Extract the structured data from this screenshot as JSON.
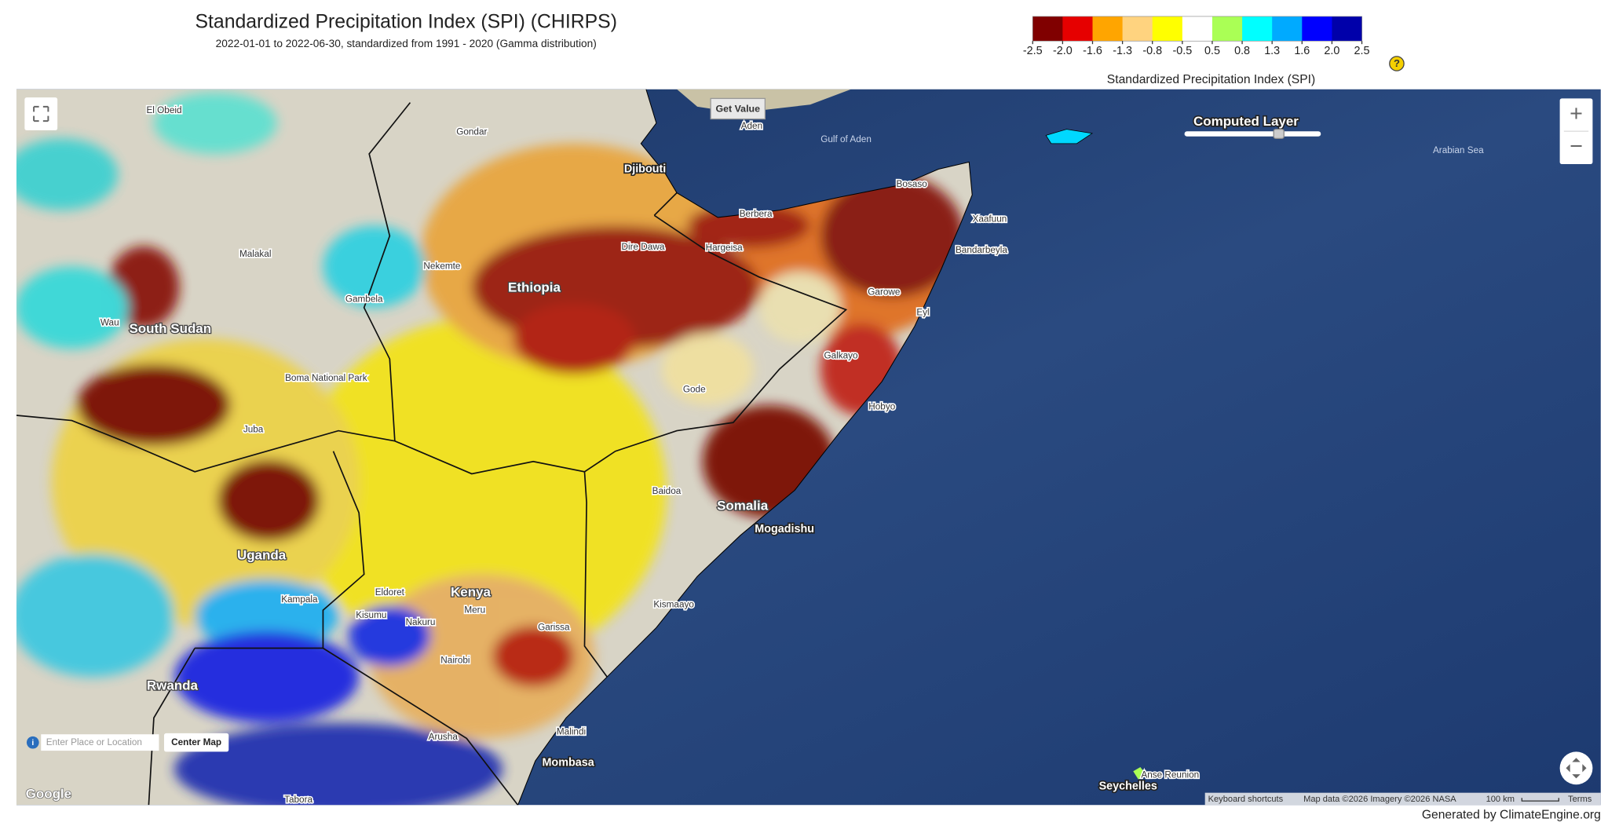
{
  "header": {
    "title": "Standardized Precipitation Index (SPI) (CHIRPS)",
    "subtitle": "2022-01-01 to 2022-06-30, standardized from 1991 - 2020 (Gamma distribution)"
  },
  "legend": {
    "title": "Standardized Precipitation Index (SPI)",
    "colors": [
      "#800000",
      "#e60000",
      "#ffa500",
      "#ffd37f",
      "#ffff00",
      "#ffffff",
      "#aaff55",
      "#00ffff",
      "#00aaff",
      "#0000ff",
      "#0000aa"
    ],
    "tick_labels": [
      "-2.5",
      "-2.0",
      "-1.6",
      "-1.3",
      "-0.8",
      "-0.5",
      "0.5",
      "0.8",
      "1.3",
      "1.6",
      "2.0",
      "2.5"
    ],
    "help": "?"
  },
  "map": {
    "controls": {
      "get_value": "Get Value",
      "layer_label": "Computed Layer",
      "search_placeholder": "Enter Place or Location",
      "center_map": "Center Map",
      "zoom_in": "+",
      "zoom_out": "−",
      "info": "i"
    },
    "labels": [
      {
        "text": "South Sudan",
        "kind": "country"
      },
      {
        "text": "Ethiopia",
        "kind": "country"
      },
      {
        "text": "Somalia",
        "kind": "country"
      },
      {
        "text": "Kenya",
        "kind": "country"
      },
      {
        "text": "Uganda",
        "kind": "country"
      },
      {
        "text": "Rwanda",
        "kind": "country"
      },
      {
        "text": "Djibouti",
        "kind": "big"
      },
      {
        "text": "Mogadishu",
        "kind": "big"
      },
      {
        "text": "Mombasa",
        "kind": "big"
      },
      {
        "text": "Seychelles",
        "kind": "big"
      },
      {
        "text": "Kampala",
        "kind": "city"
      },
      {
        "text": "Nairobi",
        "kind": "city"
      },
      {
        "text": "Juba",
        "kind": "city"
      },
      {
        "text": "Gulf of Aden",
        "kind": "water"
      },
      {
        "text": "Arabian Sea",
        "kind": "water"
      },
      {
        "text": "Bandarbeyla",
        "kind": "city"
      },
      {
        "text": "Hobyo",
        "kind": "city"
      },
      {
        "text": "Hargeisa",
        "kind": "city"
      },
      {
        "text": "Dire Dawa",
        "kind": "city"
      },
      {
        "text": "Gode",
        "kind": "city"
      },
      {
        "text": "Garowe",
        "kind": "city"
      },
      {
        "text": "Bosaso",
        "kind": "city"
      },
      {
        "text": "Aden",
        "kind": "city"
      },
      {
        "text": "Berbera",
        "kind": "city"
      },
      {
        "text": "Galkayo",
        "kind": "city"
      },
      {
        "text": "Baidoa",
        "kind": "city"
      },
      {
        "text": "Kismaayo",
        "kind": "city"
      },
      {
        "text": "Malindi",
        "kind": "city"
      },
      {
        "text": "Eldoret",
        "kind": "city"
      },
      {
        "text": "Kisumu",
        "kind": "city"
      },
      {
        "text": "Nakuru",
        "kind": "city"
      },
      {
        "text": "Meru",
        "kind": "city"
      },
      {
        "text": "Garissa",
        "kind": "city"
      },
      {
        "text": "Arusha",
        "kind": "city"
      },
      {
        "text": "Nekemte",
        "kind": "city"
      },
      {
        "text": "Gambela",
        "kind": "city"
      },
      {
        "text": "Malakal",
        "kind": "city"
      },
      {
        "text": "Wau",
        "kind": "city"
      },
      {
        "text": "El Obeid",
        "kind": "city"
      },
      {
        "text": "Gondar",
        "kind": "city"
      },
      {
        "text": "Boma National Park",
        "kind": "city"
      },
      {
        "text": "Tabora",
        "kind": "city"
      },
      {
        "text": "Anse Reunion",
        "kind": "city"
      },
      {
        "text": "Eyl",
        "kind": "city"
      },
      {
        "text": "Xaafuun",
        "kind": "city"
      }
    ],
    "attribution": {
      "logo": "Google",
      "keyboard": "Keyboard shortcuts",
      "map_data": "Map data ©2026 Imagery ©2026 NASA",
      "scale": "100 km",
      "terms": "Terms"
    }
  },
  "footer": "Generated by ClimateEngine.org"
}
